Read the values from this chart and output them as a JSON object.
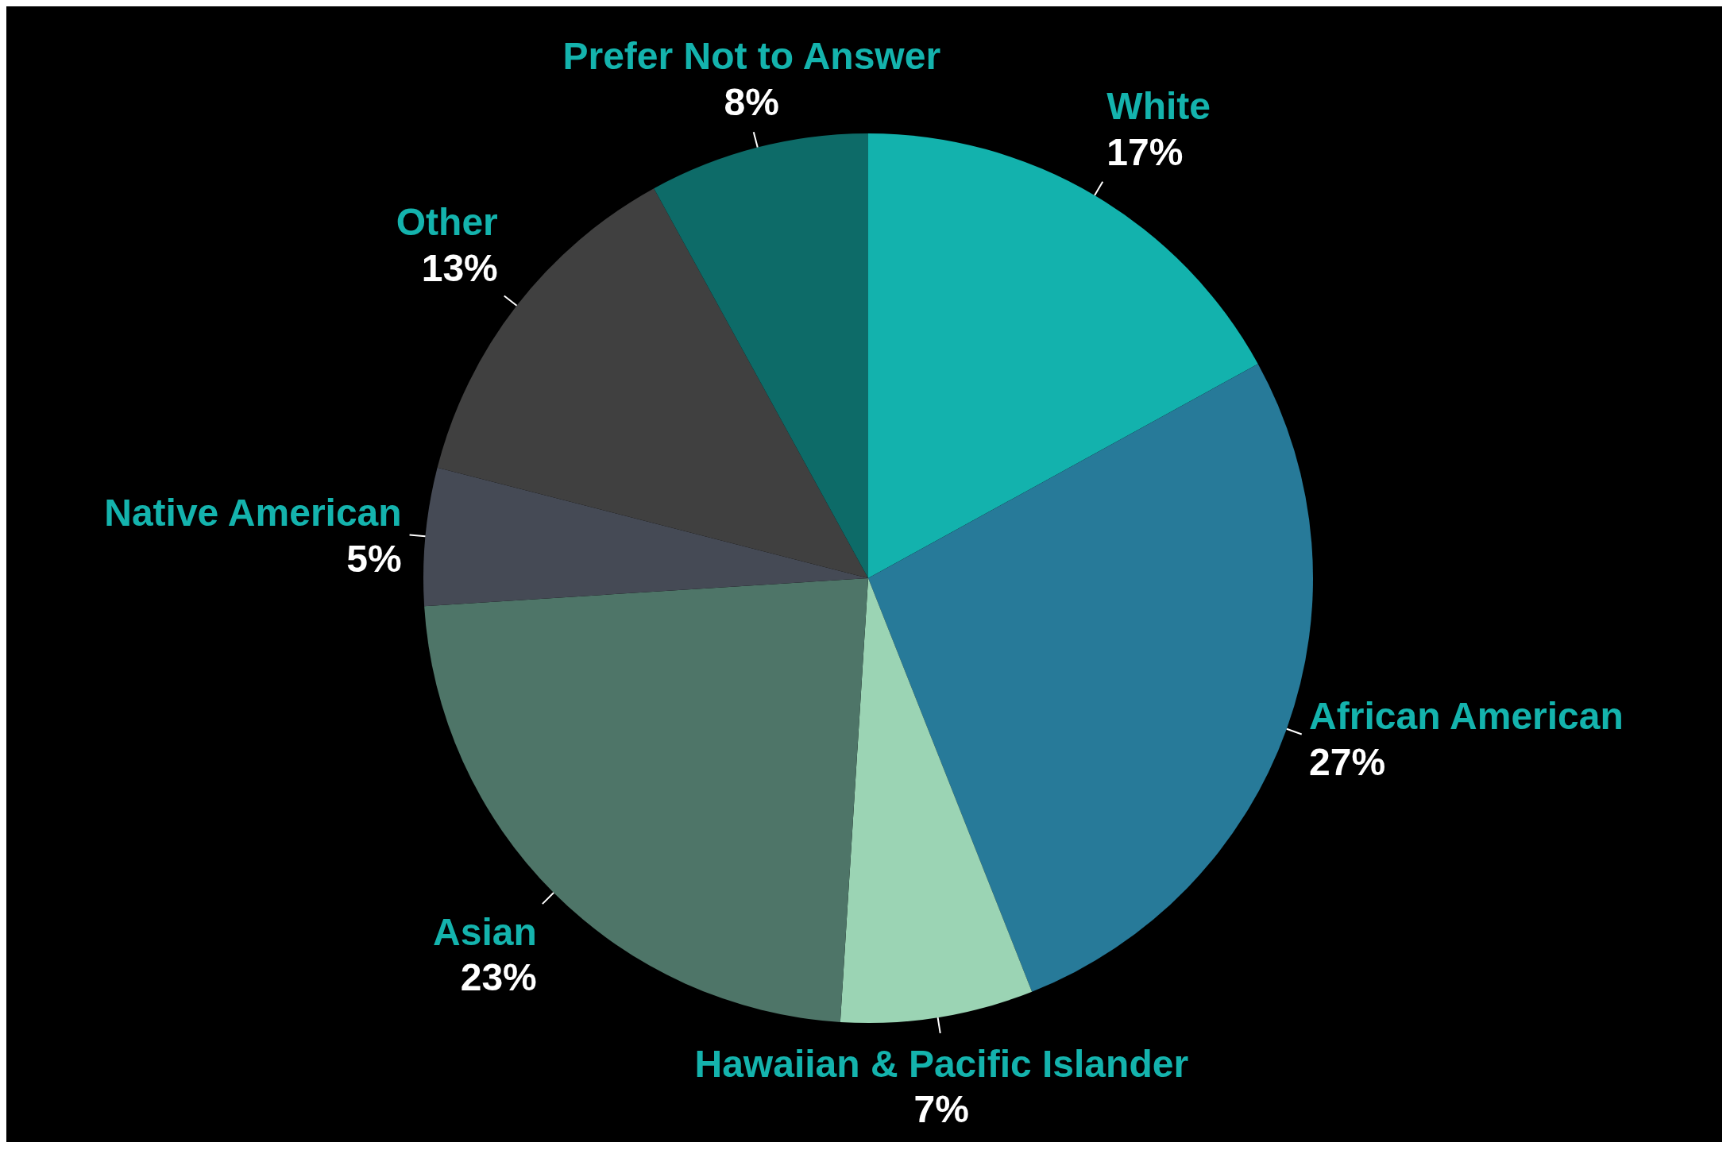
{
  "chart_data": {
    "type": "pie",
    "categories": [
      "White",
      "African American",
      "Hawaiian & Pacific Islander",
      "Asian",
      "Native American",
      "Other",
      "Prefer Not to Answer"
    ],
    "values": [
      17,
      27,
      7,
      23,
      5,
      13,
      8
    ],
    "colors": [
      "#13b2ad",
      "#277a99",
      "#9bd4b4",
      "#4e7568",
      "#454a55",
      "#404040",
      "#0d6b68"
    ],
    "value_labels": [
      "17%",
      "27%",
      "7%",
      "23%",
      "5%",
      "13%",
      "8%"
    ],
    "legend": false
  }
}
